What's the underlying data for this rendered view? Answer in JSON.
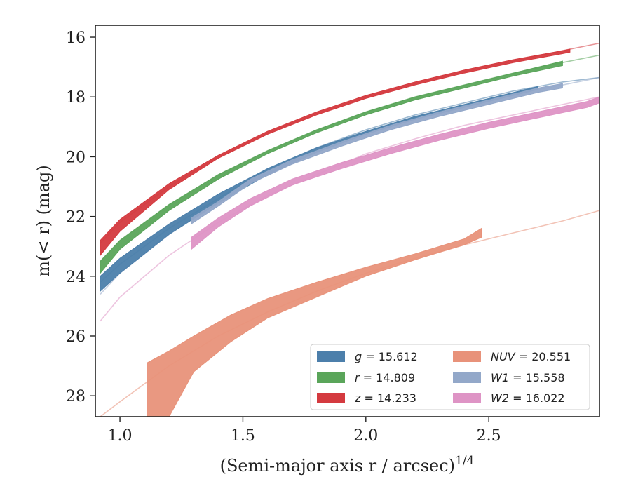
{
  "chart_data": {
    "type": "line",
    "xlabel": "(Semi-major axis r / arcsec)",
    "xlabel_superscript": "1/4",
    "ylabel": "m(< r) (mag)",
    "xlim": [
      0.9,
      2.95
    ],
    "ylim": [
      28.7,
      15.6
    ],
    "y_inverted": true,
    "x_ticks": [
      1.0,
      1.5,
      2.0,
      2.5
    ],
    "x_tick_labels": [
      "1.0",
      "1.5",
      "2.0",
      "2.5"
    ],
    "y_ticks": [
      16,
      18,
      20,
      22,
      24,
      26,
      28
    ],
    "y_tick_labels": [
      "16",
      "18",
      "20",
      "22",
      "24",
      "26",
      "28"
    ],
    "grid": false,
    "legend_position": "lower-right",
    "legend_columns": 2,
    "series": [
      {
        "name": "g = 15.612",
        "band": "g",
        "value": "15.612",
        "color": "#4c7fab",
        "model_x": [
          0.92,
          1.0,
          1.2,
          1.4,
          1.6,
          1.8,
          2.0,
          2.2,
          2.4,
          2.6,
          2.8,
          2.95
        ],
        "model_y": [
          24.2,
          23.6,
          22.4,
          21.4,
          20.4,
          19.7,
          19.1,
          18.6,
          18.2,
          17.8,
          17.5,
          17.35
        ],
        "band_x": [
          0.92,
          1.0,
          1.2,
          1.4,
          1.6,
          1.8,
          2.0,
          2.2,
          2.4,
          2.6,
          2.7
        ],
        "band_low": [
          24.0,
          23.4,
          22.25,
          21.25,
          20.4,
          19.7,
          19.15,
          18.65,
          18.25,
          17.85,
          17.65
        ],
        "band_high": [
          24.5,
          23.9,
          22.6,
          21.55,
          20.6,
          19.85,
          19.25,
          18.75,
          18.35,
          17.95,
          17.75
        ]
      },
      {
        "name": "r = 14.809",
        "band": "r",
        "value": "14.809",
        "color": "#5aa55a",
        "model_x": [
          0.92,
          1.0,
          1.2,
          1.4,
          1.6,
          1.8,
          2.0,
          2.2,
          2.4,
          2.6,
          2.8,
          2.95
        ],
        "model_y": [
          23.5,
          22.8,
          21.6,
          20.6,
          19.8,
          19.1,
          18.5,
          18.0,
          17.6,
          17.2,
          16.85,
          16.6
        ],
        "band_x": [
          0.92,
          1.0,
          1.2,
          1.4,
          1.6,
          1.8,
          2.0,
          2.2,
          2.4,
          2.6,
          2.8
        ],
        "band_low": [
          23.5,
          22.8,
          21.6,
          20.6,
          19.8,
          19.1,
          18.5,
          18.0,
          17.6,
          17.2,
          16.8
        ],
        "band_high": [
          23.9,
          23.1,
          21.8,
          20.75,
          19.9,
          19.2,
          18.6,
          18.1,
          17.7,
          17.3,
          16.95
        ]
      },
      {
        "name": "z = 14.233",
        "band": "z",
        "value": "14.233",
        "color": "#d43a3f",
        "model_x": [
          0.92,
          1.0,
          1.2,
          1.4,
          1.6,
          1.8,
          2.0,
          2.2,
          2.4,
          2.6,
          2.8,
          2.95
        ],
        "model_y": [
          22.9,
          22.2,
          21.0,
          20.0,
          19.2,
          18.55,
          18.0,
          17.55,
          17.15,
          16.8,
          16.45,
          16.2
        ],
        "band_x": [
          0.92,
          1.0,
          1.2,
          1.4,
          1.6,
          1.8,
          2.0,
          2.2,
          2.4,
          2.6,
          2.8,
          2.83
        ],
        "band_low": [
          22.8,
          22.1,
          20.9,
          19.95,
          19.15,
          18.5,
          17.95,
          17.5,
          17.1,
          16.75,
          16.45,
          16.4
        ],
        "band_high": [
          23.3,
          22.5,
          21.1,
          20.05,
          19.25,
          18.6,
          18.05,
          17.6,
          17.2,
          16.85,
          16.55,
          16.5
        ]
      },
      {
        "name": "NUV = 20.551",
        "band": "NUV",
        "value": "20.551",
        "color": "#e8927a",
        "model_x": [
          0.92,
          1.0,
          1.2,
          1.4,
          1.6,
          1.8,
          2.0,
          2.2,
          2.4,
          2.6,
          2.8,
          2.95
        ],
        "model_y": [
          28.7,
          28.2,
          27.0,
          26.0,
          25.2,
          24.5,
          23.9,
          23.4,
          22.95,
          22.55,
          22.15,
          21.8
        ],
        "band_x": [
          1.11,
          1.2,
          1.3,
          1.45,
          1.6,
          1.8,
          2.0,
          2.2,
          2.4,
          2.47
        ],
        "band_low": [
          26.9,
          26.5,
          26.0,
          25.3,
          24.75,
          24.2,
          23.7,
          23.25,
          22.75,
          22.4
        ],
        "band_high": [
          28.7,
          28.7,
          27.2,
          26.2,
          25.4,
          24.7,
          24.0,
          23.45,
          22.95,
          22.7
        ]
      },
      {
        "name": "W1 = 15.558",
        "band": "W1",
        "value": "15.558",
        "color": "#93a8c9",
        "model_x": [
          0.92,
          1.0,
          1.2,
          1.4,
          1.6,
          1.8,
          2.0,
          2.2,
          2.4,
          2.6,
          2.8,
          2.95
        ],
        "model_y": [
          24.6,
          23.9,
          22.6,
          21.5,
          20.6,
          19.8,
          19.2,
          18.7,
          18.3,
          17.9,
          17.6,
          17.35
        ],
        "band_x": [
          1.29,
          1.4,
          1.53,
          1.7,
          1.9,
          2.1,
          2.3,
          2.5,
          2.7,
          2.8
        ],
        "band_low": [
          22.05,
          21.5,
          20.75,
          20.1,
          19.5,
          18.95,
          18.5,
          18.1,
          17.7,
          17.55
        ],
        "band_high": [
          22.25,
          21.65,
          20.9,
          20.25,
          19.65,
          19.1,
          18.65,
          18.25,
          17.85,
          17.7
        ]
      },
      {
        "name": "W2 = 16.022",
        "band": "W2",
        "value": "16.022",
        "color": "#de94c5",
        "model_x": [
          0.92,
          1.0,
          1.2,
          1.4,
          1.6,
          1.8,
          2.0,
          2.2,
          2.4,
          2.6,
          2.8,
          2.95
        ],
        "model_y": [
          25.5,
          24.7,
          23.3,
          22.2,
          21.3,
          20.6,
          19.9,
          19.4,
          18.95,
          18.6,
          18.25,
          18.0
        ],
        "band_x": [
          1.29,
          1.4,
          1.53,
          1.7,
          1.9,
          2.1,
          2.3,
          2.5,
          2.7,
          2.9,
          2.95
        ],
        "band_low": [
          22.7,
          22.05,
          21.4,
          20.75,
          20.2,
          19.7,
          19.25,
          18.85,
          18.5,
          18.15,
          18.0
        ],
        "band_high": [
          23.1,
          22.35,
          21.65,
          20.95,
          20.4,
          19.9,
          19.45,
          19.05,
          18.7,
          18.35,
          18.2
        ]
      }
    ]
  }
}
